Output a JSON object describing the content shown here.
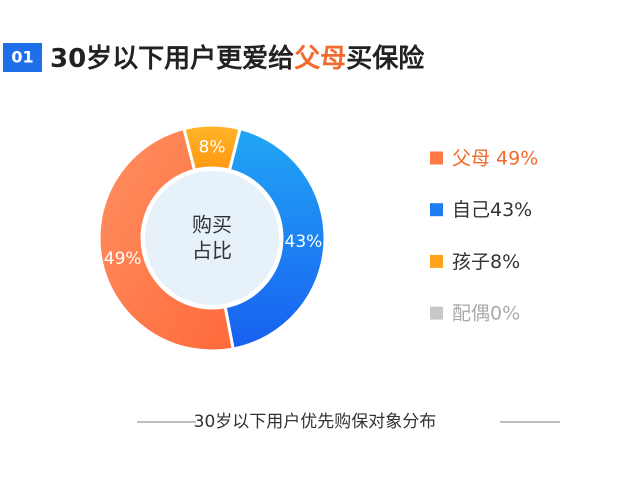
{
  "chart_data": {
    "type": "donut",
    "badge": "01",
    "title_parts": [
      "30岁以下用户更爱给",
      "父母",
      "买保险"
    ],
    "title_colors": [
      "#222222",
      "#f26b2e",
      "#222222"
    ],
    "center_label": [
      "购买",
      "占比"
    ],
    "categories": [
      "父母 49%",
      "自己43%",
      "孩子8%",
      "配偶0%"
    ],
    "values": [
      49,
      43,
      8,
      0
    ],
    "value_labels": [
      "49%",
      "43%",
      "8%",
      null
    ],
    "colors": [
      "#ff7a45",
      "#1f7cf0",
      "#ffa11a",
      "#c8c8c8"
    ],
    "legend_text_colors": [
      "#f26b2e",
      "#333333",
      "#333333",
      "#aaaaaa"
    ],
    "caption": "30岁以下用户优先购保对象分布"
  }
}
